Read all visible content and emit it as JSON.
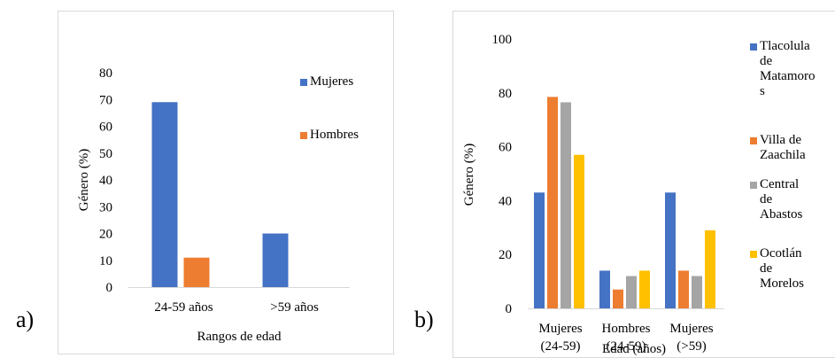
{
  "panels": {
    "a_letter": "a)",
    "b_letter": "b)"
  },
  "chart_data": [
    {
      "type": "bar",
      "title": "",
      "xlabel": "Rangos de edad",
      "ylabel": "Género (%)",
      "ylim": [
        0,
        80
      ],
      "yticks": [
        "0",
        "10",
        "20",
        "30",
        "40",
        "50",
        "60",
        "70",
        "80"
      ],
      "categories": [
        "24-59 años",
        ">59 años"
      ],
      "series": [
        {
          "name": "Mujeres",
          "color": "#4472C4",
          "values": [
            69,
            20
          ]
        },
        {
          "name": "Hombres",
          "color": "#ED7D31",
          "values": [
            11,
            0
          ]
        }
      ],
      "grid": false,
      "legend": "right"
    },
    {
      "type": "bar",
      "title": "",
      "xlabel": "Edad (años)",
      "ylabel": "Género (%)",
      "ylim": [
        0,
        100
      ],
      "yticks": [
        "0",
        "20",
        "40",
        "60",
        "80",
        "100"
      ],
      "categories": [
        "Mujeres\n(24-59)",
        "Hombres\n(24-59)",
        "Mujeres\n(>59)"
      ],
      "series": [
        {
          "name": "Tlacolula\nde\nMatamoro\ns",
          "color": "#4472C4",
          "values": [
            43,
            14,
            43
          ]
        },
        {
          "name": "Villa de\nZaachila",
          "color": "#ED7D31",
          "values": [
            78.5,
            7,
            14
          ]
        },
        {
          "name": "Central de\nAbastos",
          "color": "#A5A5A5",
          "values": [
            76.5,
            12,
            12
          ]
        },
        {
          "name": "Ocotlán de\nMorelos",
          "color": "#FFC000",
          "values": [
            57,
            14,
            29
          ]
        }
      ],
      "grid": false,
      "legend": "right"
    }
  ]
}
